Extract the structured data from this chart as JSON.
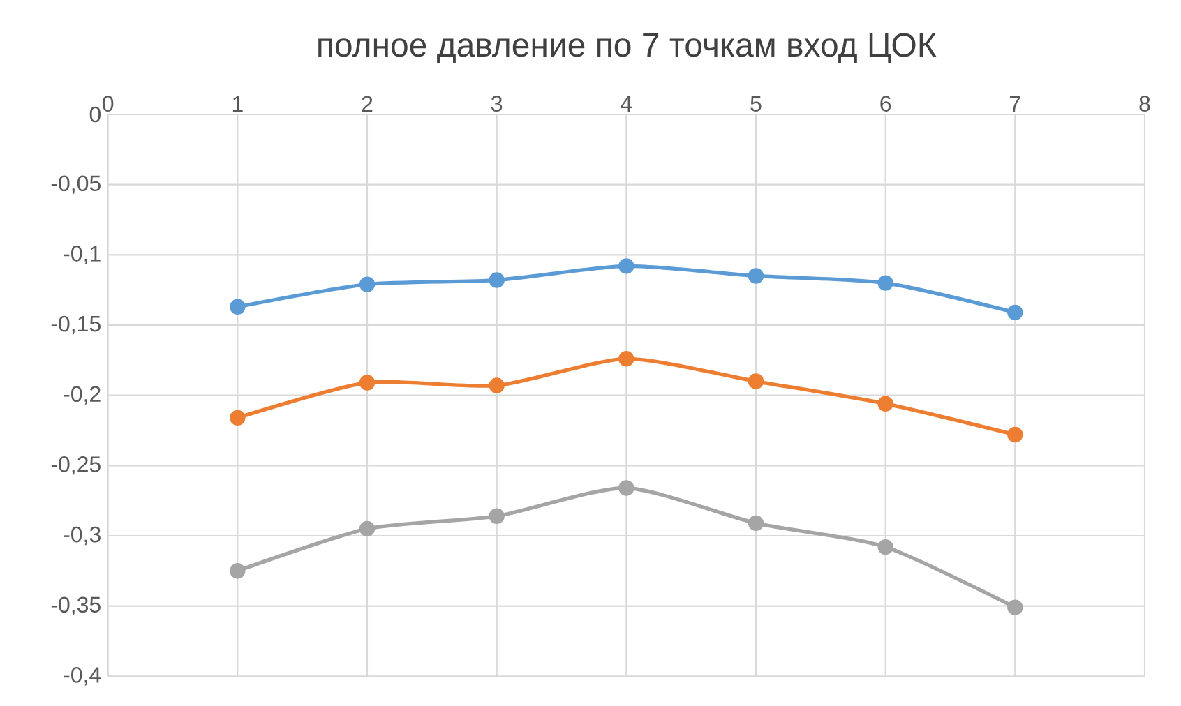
{
  "chart_data": {
    "type": "line",
    "title": "полное давление по 7 точкам вход ЦОК",
    "x": [
      1,
      2,
      3,
      4,
      5,
      6,
      7
    ],
    "series": [
      {
        "color": "#5b9bd5",
        "values": [
          -0.137,
          -0.121,
          -0.118,
          -0.108,
          -0.115,
          -0.12,
          -0.141
        ]
      },
      {
        "color": "#ed7d31",
        "values": [
          -0.216,
          -0.191,
          -0.193,
          -0.174,
          -0.19,
          -0.206,
          -0.228
        ]
      },
      {
        "color": "#a5a5a5",
        "values": [
          -0.325,
          -0.295,
          -0.286,
          -0.266,
          -0.291,
          -0.308,
          -0.351
        ]
      }
    ],
    "xlim": [
      0,
      8
    ],
    "xticks": [
      0,
      1,
      2,
      3,
      4,
      5,
      6,
      7,
      8
    ],
    "ylim": [
      -0.4,
      0
    ],
    "yticks": [
      0,
      {
        "value": -0.05,
        "label": "-0,05"
      },
      {
        "value": -0.1,
        "label": "-0,1"
      },
      {
        "value": -0.15,
        "label": "-0,15"
      },
      {
        "value": -0.2,
        "label": "-0,2"
      },
      {
        "value": -0.25,
        "label": "-0,25"
      },
      {
        "value": -0.3,
        "label": "-0,3"
      },
      {
        "value": -0.35,
        "label": "-0,35"
      },
      {
        "value": -0.4,
        "label": "-0,4"
      }
    ],
    "grid": true,
    "marker": "circle",
    "line_style": "solid"
  }
}
